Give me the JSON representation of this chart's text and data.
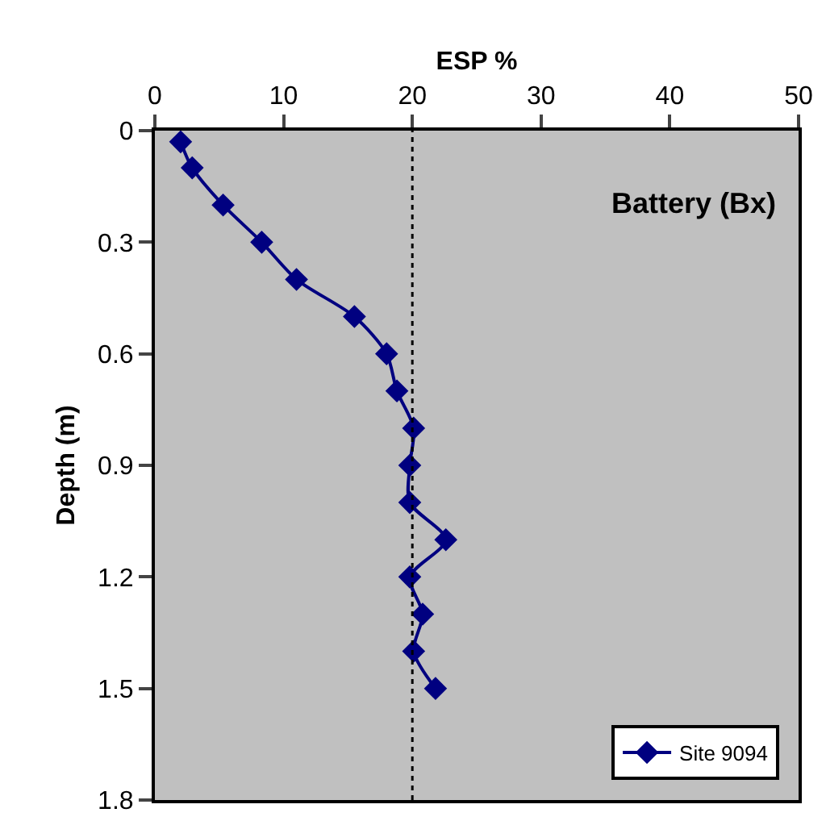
{
  "chart_data": {
    "type": "line",
    "xlabel": "ESP %",
    "ylabel": "Depth (m)",
    "annotations": [
      "Battery (Bx)"
    ],
    "xlim": [
      0,
      50
    ],
    "xticks": [
      0,
      10,
      20,
      30,
      40,
      50
    ],
    "ylim": [
      1.8,
      0
    ],
    "yticks": [
      0,
      0.3,
      0.6,
      0.9,
      1.2,
      1.5,
      1.8
    ],
    "series": [
      {
        "name": "Site 9094",
        "color": "#000080",
        "x": [
          2.0,
          2.9,
          5.3,
          8.3,
          11.0,
          15.5,
          18.0,
          18.8,
          20.1,
          19.8,
          19.8,
          22.6,
          19.8,
          20.8,
          20.1,
          21.8
        ],
        "values": [
          0.03,
          0.1,
          0.2,
          0.3,
          0.4,
          0.5,
          0.6,
          0.7,
          0.8,
          0.9,
          1.0,
          1.1,
          1.2,
          1.3,
          1.4,
          1.5
        ]
      }
    ],
    "ref_lines": [
      {
        "axis": "x",
        "value": 20,
        "color": "#000000",
        "line_style": "dotted"
      }
    ],
    "marker": "diamond",
    "line_style": "solid",
    "legend": "bottom right",
    "grid": false
  }
}
